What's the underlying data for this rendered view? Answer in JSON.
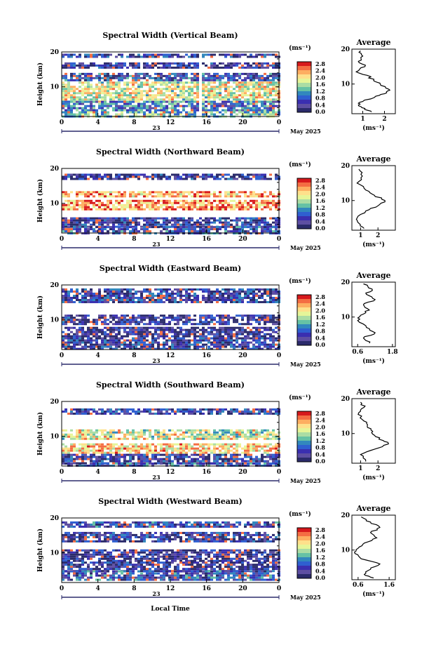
{
  "page": {
    "xlabel": "Local Time",
    "date_label": "May 2025",
    "day_label": "23",
    "unit_label": "(ms⁻¹)",
    "avg_title": "Average"
  },
  "colorbar": {
    "ticks": [
      "2.8",
      "2.4",
      "2.0",
      "1.6",
      "1.2",
      "0.8",
      "0.4",
      "0.0"
    ],
    "colors": [
      "#d7191c",
      "#f46d43",
      "#fdae61",
      "#fee08b",
      "#e6f598",
      "#abdda4",
      "#66c2a5",
      "#3288bd",
      "#2f5fd0",
      "#3a2fb0",
      "#5e4fa2",
      "#2b2b6b"
    ]
  },
  "chart_data": [
    {
      "type": "heatmap",
      "title": "Spectral Width (Vertical Beam)",
      "ylabel": "Height (km)",
      "xlim": [
        0,
        24
      ],
      "ylim": [
        1.5,
        20
      ],
      "x_ticks": [
        "0",
        "4",
        "8",
        "12",
        "16",
        "20",
        "0"
      ],
      "y_ticks": [
        "20",
        "10"
      ],
      "avg_ticks": [
        "1",
        "2"
      ],
      "avg_range": [
        0.5,
        2.5
      ],
      "bands": [
        {
          "h0": 18.5,
          "h1": 19.5,
          "level": 0.5
        },
        {
          "h0": 15.5,
          "h1": 17.0,
          "level": 0.3
        },
        {
          "h0": 12.0,
          "h1": 14.0,
          "level": 0.6
        },
        {
          "h0": 6.0,
          "h1": 11.5,
          "level": 1.9
        },
        {
          "h0": 3.0,
          "h1": 6.0,
          "level": 0.9
        },
        {
          "h0": 1.5,
          "h1": 3.0,
          "level": 1.4
        }
      ],
      "gap_hours": [
        15.0,
        15.2
      ],
      "avg_profile": [
        [
          0.9,
          19.5
        ],
        [
          1.0,
          18
        ],
        [
          0.8,
          16.5
        ],
        [
          1.1,
          15
        ],
        [
          0.7,
          13.5
        ],
        [
          1.2,
          12.5
        ],
        [
          1.5,
          11
        ],
        [
          1.8,
          10
        ],
        [
          2.2,
          8.5
        ],
        [
          2.1,
          7.5
        ],
        [
          1.6,
          6.5
        ],
        [
          1.0,
          5
        ],
        [
          0.8,
          4
        ],
        [
          1.1,
          3
        ],
        [
          1.4,
          2
        ]
      ]
    },
    {
      "type": "heatmap",
      "title": "Spectral Width (Northward Beam)",
      "ylabel": "Height (km)",
      "xlim": [
        0,
        24
      ],
      "ylim": [
        1.5,
        20
      ],
      "x_ticks": [
        "0",
        "4",
        "8",
        "12",
        "16",
        "20",
        "0"
      ],
      "y_ticks": [
        "20",
        "10"
      ],
      "avg_ticks": [
        "1",
        "2"
      ],
      "avg_range": [
        0.5,
        3.0
      ],
      "bands": [
        {
          "h0": 17.0,
          "h1": 18.5,
          "level": 0.3
        },
        {
          "h0": 12.0,
          "h1": 13.5,
          "level": 2.4
        },
        {
          "h0": 8.5,
          "h1": 11.0,
          "level": 2.6
        },
        {
          "h0": 3.5,
          "h1": 6.0,
          "level": 0.4
        },
        {
          "h0": 1.5,
          "h1": 3.5,
          "level": 0.6
        }
      ],
      "gap_hours": [],
      "avg_profile": [
        [
          0.9,
          19
        ],
        [
          1.1,
          17
        ],
        [
          0.8,
          15
        ],
        [
          1.3,
          13
        ],
        [
          1.8,
          11.5
        ],
        [
          2.4,
          10
        ],
        [
          2.0,
          8.5
        ],
        [
          1.3,
          7
        ],
        [
          0.8,
          5
        ],
        [
          0.9,
          3.5
        ],
        [
          1.2,
          2
        ]
      ]
    },
    {
      "type": "heatmap",
      "title": "Spectral Width (Eastward Beam)",
      "ylabel": "Height (km)",
      "xlim": [
        0,
        24
      ],
      "ylim": [
        1.5,
        20
      ],
      "x_ticks": [
        "0",
        "4",
        "8",
        "12",
        "16",
        "20",
        "0"
      ],
      "y_ticks": [
        "20",
        "10"
      ],
      "avg_ticks": [
        "0.6",
        "1.8"
      ],
      "avg_range": [
        0.4,
        1.9
      ],
      "bands": [
        {
          "h0": 15.0,
          "h1": 19.0,
          "level": 0.5
        },
        {
          "h0": 9.0,
          "h1": 11.5,
          "level": 0.3
        },
        {
          "h0": 5.0,
          "h1": 8.0,
          "level": 0.2
        },
        {
          "h0": 1.5,
          "h1": 5.0,
          "level": 0.5
        }
      ],
      "gap_hours": [
        15.2,
        15.4
      ],
      "avg_profile": [
        [
          0.8,
          19.5
        ],
        [
          1.1,
          18
        ],
        [
          0.9,
          16.5
        ],
        [
          1.2,
          15
        ],
        [
          0.8,
          13.5
        ],
        [
          1.0,
          12
        ],
        [
          0.7,
          10.5
        ],
        [
          0.6,
          9
        ],
        [
          0.9,
          7
        ],
        [
          1.2,
          5.5
        ],
        [
          0.8,
          4
        ],
        [
          1.0,
          2.5
        ]
      ]
    },
    {
      "type": "heatmap",
      "title": "Spectral Width (Southward Beam)",
      "ylabel": "Height (km)",
      "xlim": [
        0,
        24
      ],
      "ylim": [
        1.5,
        20
      ],
      "x_ticks": [
        "0",
        "4",
        "8",
        "12",
        "16",
        "20",
        "0"
      ],
      "y_ticks": [
        "20",
        "10"
      ],
      "avg_ticks": [
        "1",
        "2"
      ],
      "avg_range": [
        0.5,
        3.0
      ],
      "bands": [
        {
          "h0": 16.5,
          "h1": 18.0,
          "level": 0.5
        },
        {
          "h0": 9.5,
          "h1": 12.0,
          "level": 1.8
        },
        {
          "h0": 5.0,
          "h1": 8.0,
          "level": 2.2
        },
        {
          "h0": 2.5,
          "h1": 5.0,
          "level": 0.4
        },
        {
          "h0": 1.5,
          "h1": 2.5,
          "level": 0.7
        }
      ],
      "gap_hours": [],
      "avg_profile": [
        [
          1.0,
          19
        ],
        [
          1.2,
          17.5
        ],
        [
          0.9,
          16
        ],
        [
          1.1,
          14
        ],
        [
          1.4,
          12.5
        ],
        [
          1.6,
          11
        ],
        [
          1.8,
          9.5
        ],
        [
          2.3,
          8
        ],
        [
          2.6,
          7
        ],
        [
          1.8,
          5.5
        ],
        [
          1.0,
          4
        ],
        [
          1.3,
          2
        ]
      ]
    },
    {
      "type": "heatmap",
      "title": "Spectral Width (Westward Beam)",
      "ylabel": "Height (km)",
      "xlim": [
        0,
        24
      ],
      "ylim": [
        1.5,
        20
      ],
      "x_ticks": [
        "0",
        "4",
        "8",
        "12",
        "16",
        "20",
        "0"
      ],
      "y_ticks": [
        "20",
        "10"
      ],
      "avg_ticks": [
        "0.6",
        "1.6"
      ],
      "avg_range": [
        0.4,
        1.8
      ],
      "bands": [
        {
          "h0": 17.5,
          "h1": 19.0,
          "level": 0.6
        },
        {
          "h0": 13.5,
          "h1": 16.0,
          "level": 0.4
        },
        {
          "h0": 7.5,
          "h1": 11.0,
          "level": 0.2
        },
        {
          "h0": 5.0,
          "h1": 7.5,
          "level": 0.3
        },
        {
          "h0": 2.0,
          "h1": 5.0,
          "level": 0.7
        }
      ],
      "gap_hours": [
        14.6,
        14.8
      ],
      "avg_profile": [
        [
          0.7,
          19.5
        ],
        [
          1.0,
          18
        ],
        [
          1.3,
          16.5
        ],
        [
          1.0,
          15
        ],
        [
          1.2,
          13.5
        ],
        [
          0.8,
          12
        ],
        [
          0.6,
          10.5
        ],
        [
          0.5,
          9
        ],
        [
          0.7,
          7.5
        ],
        [
          1.3,
          6
        ],
        [
          1.0,
          4.5
        ],
        [
          0.8,
          3
        ],
        [
          1.1,
          2
        ]
      ]
    }
  ]
}
